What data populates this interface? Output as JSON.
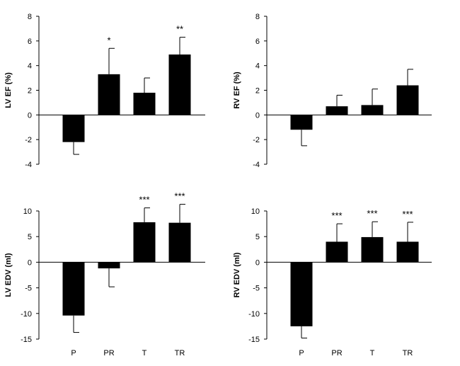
{
  "chart_data": [
    {
      "type": "bar",
      "ylabel": "LV EF (%)",
      "categories": [
        "P",
        "PR",
        "T",
        "TR"
      ],
      "show_category_labels": false,
      "ylim": [
        -4,
        8
      ],
      "yticks": [
        -4,
        -2,
        0,
        2,
        4,
        6,
        8
      ],
      "values": [
        -2.2,
        3.3,
        1.8,
        4.9
      ],
      "errors": [
        1.0,
        2.1,
        1.2,
        1.4
      ],
      "significance": [
        "",
        "*",
        "",
        "**"
      ],
      "bar_color": "#000000"
    },
    {
      "type": "bar",
      "ylabel": "RV EF (%)",
      "categories": [
        "P",
        "PR",
        "T",
        "TR"
      ],
      "show_category_labels": false,
      "ylim": [
        -4,
        8
      ],
      "yticks": [
        -4,
        -2,
        0,
        2,
        4,
        6,
        8
      ],
      "values": [
        -1.2,
        0.7,
        0.8,
        2.4
      ],
      "errors": [
        1.3,
        0.9,
        1.3,
        1.3
      ],
      "significance": [
        "",
        "",
        "",
        ""
      ],
      "bar_color": "#000000"
    },
    {
      "type": "bar",
      "ylabel": "LV EDV (ml)",
      "categories": [
        "P",
        "PR",
        "T",
        "TR"
      ],
      "show_category_labels": true,
      "ylim": [
        -15,
        10
      ],
      "yticks": [
        -15,
        -10,
        -5,
        0,
        5,
        10
      ],
      "values": [
        -10.4,
        -1.2,
        7.8,
        7.7
      ],
      "errors": [
        3.3,
        3.6,
        2.8,
        3.6
      ],
      "significance": [
        "",
        "",
        "***",
        "***"
      ],
      "bar_color": "#000000"
    },
    {
      "type": "bar",
      "ylabel": "RV EDV (ml)",
      "categories": [
        "P",
        "PR",
        "T",
        "TR"
      ],
      "show_category_labels": true,
      "ylim": [
        -15,
        10
      ],
      "yticks": [
        -15,
        -10,
        -5,
        0,
        5,
        10
      ],
      "values": [
        -12.5,
        4.0,
        4.9,
        4.0
      ],
      "errors": [
        2.3,
        3.5,
        3.0,
        3.8
      ],
      "significance": [
        "",
        "***",
        "***",
        "***"
      ],
      "bar_color": "#000000"
    }
  ]
}
